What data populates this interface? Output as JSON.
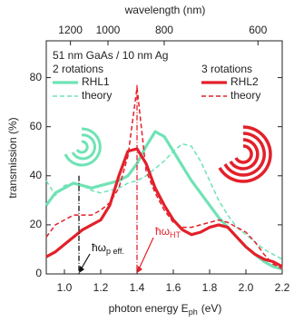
{
  "chart_data": {
    "type": "line",
    "annotation": "51 nm GaAs / 10 nm Ag",
    "ylabel": "transmission (%)",
    "xlabel": {
      "text": "photon energy E",
      "sub": "ph",
      "unit": "(eV)"
    },
    "x2label": "wavelength (nm)",
    "xlim": [
      0.9,
      2.2
    ],
    "xticks": [
      {
        "value": 1,
        "label": "1.0"
      },
      1.2,
      1.4,
      1.6,
      1.8,
      {
        "value": 2,
        "label": "2.0"
      },
      2.2
    ],
    "x2ticks": [
      1200,
      1000,
      800,
      600
    ],
    "ylim": [
      0,
      95
    ],
    "yticks": [
      0,
      20,
      40,
      60,
      80
    ],
    "legend_groups": [
      "2 rotations",
      "3 rotations"
    ],
    "x": [
      0.9,
      0.95,
      1.0,
      1.05,
      1.1,
      1.15,
      1.2,
      1.25,
      1.3,
      1.35,
      1.4,
      1.45,
      1.5,
      1.55,
      1.6,
      1.65,
      1.7,
      1.75,
      1.8,
      1.85,
      1.9,
      1.95,
      2.0,
      2.05,
      2.1,
      2.15,
      2.2
    ],
    "series": [
      {
        "name": "RHL1",
        "color": "#6fe3b5",
        "dashed": false,
        "group": 0,
        "values": [
          28,
          33,
          35,
          37,
          36,
          35,
          36,
          37,
          38,
          40,
          45,
          52,
          58,
          56,
          50,
          44,
          38,
          33,
          28,
          23,
          19,
          15,
          11,
          8,
          5,
          3,
          2
        ]
      },
      {
        "name": "theory",
        "color": "#6fe3b5",
        "dashed": true,
        "group": 0,
        "values": [
          38,
          32,
          36,
          37,
          36,
          34,
          33,
          34,
          35,
          37,
          38,
          40,
          43,
          46,
          50,
          53,
          52,
          46,
          38,
          30,
          24,
          19,
          16,
          13,
          10,
          8,
          6
        ]
      },
      {
        "name": "RHL2",
        "color": "#e3202a",
        "dashed": false,
        "group": 1,
        "values": [
          7,
          9,
          12,
          15,
          18,
          20,
          22,
          28,
          40,
          50,
          51,
          45,
          35,
          28,
          22,
          18,
          16,
          17,
          19,
          20,
          19,
          15,
          11,
          8,
          6,
          5,
          3
        ]
      },
      {
        "name": "theory",
        "color": "#e3202a",
        "dashed": true,
        "group": 1,
        "values": [
          15,
          20,
          22,
          24,
          24,
          24,
          26,
          29,
          35,
          48,
          76,
          42,
          33,
          26,
          21,
          19,
          19,
          20,
          21,
          22,
          21,
          19,
          17,
          13,
          8,
          4,
          2
        ]
      }
    ],
    "markers": [
      {
        "x": 1.08,
        "top": 40,
        "color": "#111111",
        "label": "ħω",
        "sub": "p eff."
      },
      {
        "x": 1.4,
        "top": 77,
        "color": "#e3202a",
        "label": "ħω",
        "sub": "HT"
      }
    ]
  }
}
